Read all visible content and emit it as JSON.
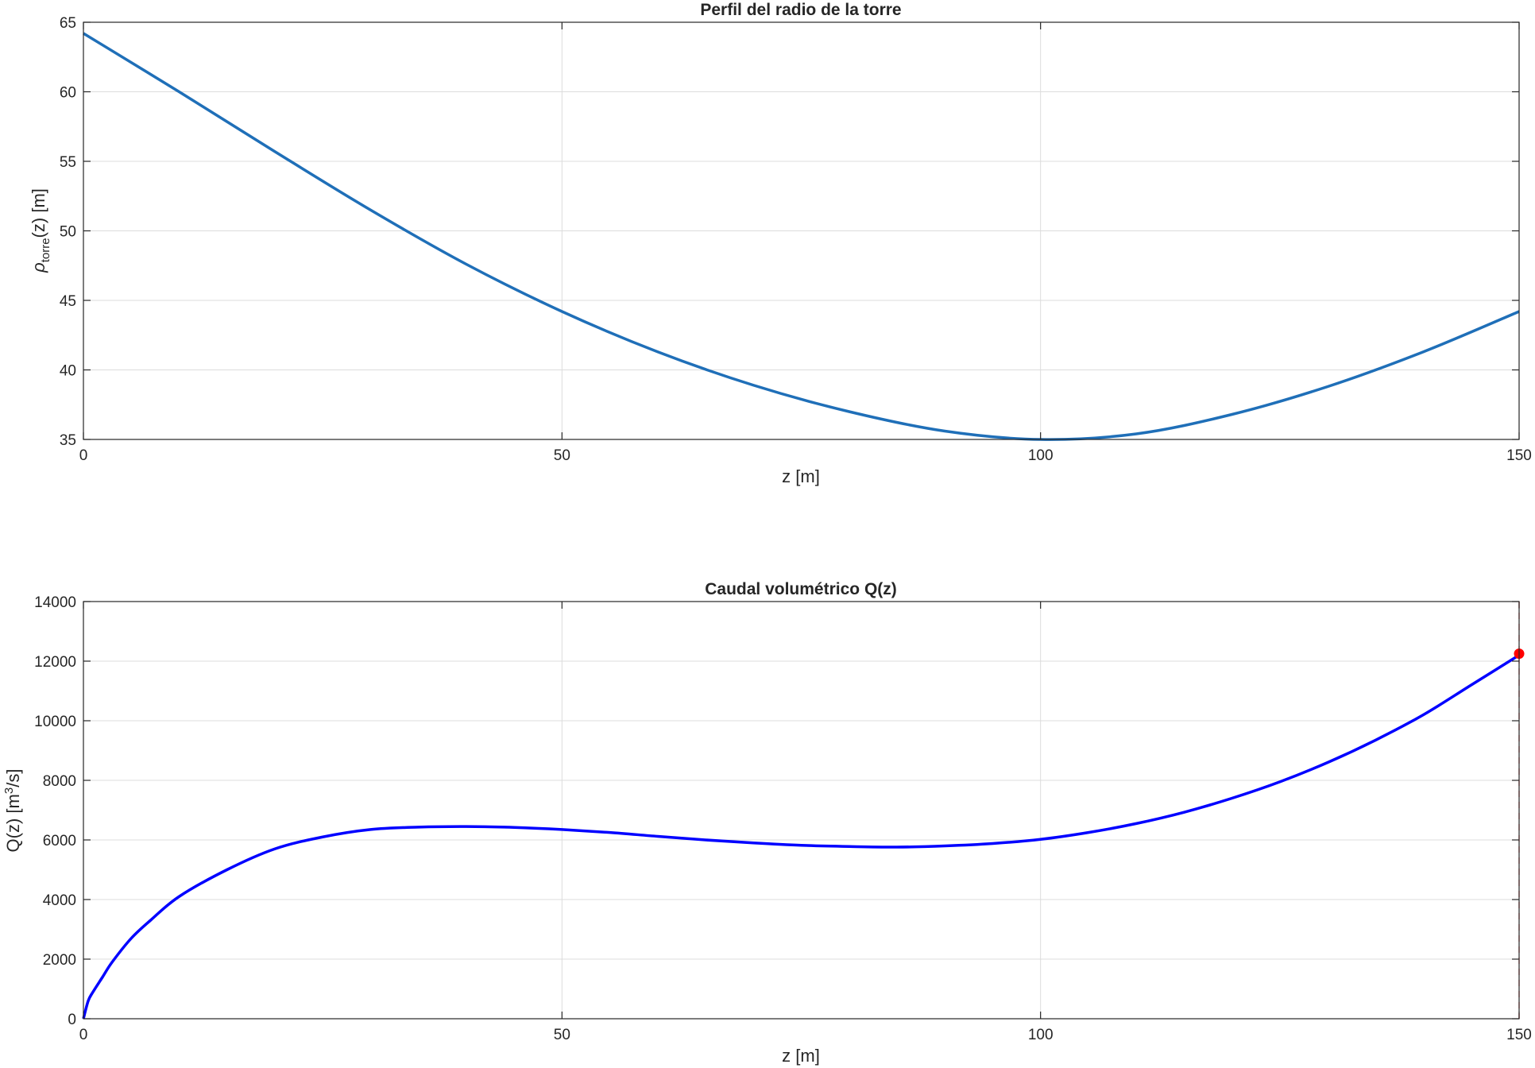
{
  "chart_data": [
    {
      "type": "line",
      "title": "Perfil del radio de la torre",
      "xlabel": "z [m]",
      "ylabel": {
        "base": "ρ",
        "sub": "torre",
        "rest": "(z)  [m]"
      },
      "xlim": [
        0,
        150
      ],
      "ylim": [
        35,
        65
      ],
      "xticks": [
        0,
        50,
        100,
        150
      ],
      "yticks": [
        35,
        40,
        45,
        50,
        55,
        60,
        65
      ],
      "grid": true,
      "series": [
        {
          "color": "#1f6fb8",
          "x": [
            0,
            10,
            20,
            30,
            40,
            50,
            60,
            70,
            80,
            90,
            100,
            110,
            120,
            130,
            140,
            150
          ],
          "y": [
            64.2,
            60.0,
            55.7,
            51.5,
            47.6,
            44.2,
            41.3,
            38.9,
            37.0,
            35.6,
            35.0,
            35.4,
            36.8,
            38.8,
            41.3,
            44.2
          ]
        }
      ]
    },
    {
      "type": "line",
      "title": "Caudal volumétrico Q(z)",
      "xlabel": "z [m]",
      "ylabel": {
        "base": "Q(z)  [m",
        "sup": "3",
        "rest": "/s]"
      },
      "xlim": [
        0,
        150
      ],
      "ylim": [
        0,
        14000
      ],
      "xticks": [
        0,
        50,
        100,
        150
      ],
      "yticks": [
        0,
        2000,
        4000,
        6000,
        8000,
        10000,
        12000,
        14000
      ],
      "grid": true,
      "series": [
        {
          "color": "#0000ff",
          "x": [
            0,
            0.5,
            1,
            2,
            3,
            5,
            7,
            10,
            15,
            20,
            25,
            30,
            35,
            40,
            45,
            50,
            55,
            60,
            65,
            70,
            75,
            80,
            85,
            90,
            95,
            100,
            105,
            110,
            115,
            120,
            125,
            130,
            135,
            140,
            145,
            150
          ],
          "y": [
            0,
            600,
            900,
            1400,
            1900,
            2700,
            3300,
            4100,
            5000,
            5700,
            6100,
            6350,
            6430,
            6450,
            6420,
            6350,
            6250,
            6120,
            6000,
            5900,
            5820,
            5780,
            5760,
            5800,
            5880,
            6020,
            6250,
            6550,
            6930,
            7400,
            7950,
            8600,
            9350,
            10200,
            11200,
            12200
          ]
        }
      ],
      "marker": {
        "x": 150,
        "y": 12250,
        "color": "#ff0000"
      },
      "vline": {
        "x": 150,
        "color": "#ff0000"
      }
    }
  ]
}
